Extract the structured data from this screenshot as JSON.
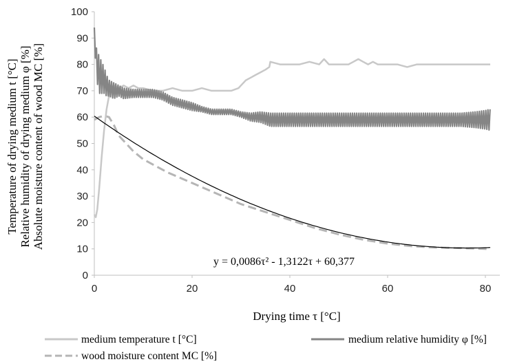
{
  "chart_data": {
    "type": "line",
    "xlabel": "Drying time τ [°C]",
    "ylabel_lines": [
      "Temperature of drying medium t [°C]",
      "Relative humidity of drying medium φ [%]",
      "Absolute moisture content of wood MC [%]"
    ],
    "xlim": [
      0,
      83
    ],
    "ylim": [
      0,
      100
    ],
    "xticks": [
      0,
      20,
      40,
      60,
      80
    ],
    "yticks": [
      0,
      10,
      20,
      30,
      40,
      50,
      60,
      70,
      80,
      90,
      100
    ],
    "grid": false,
    "legend_position": "bottom",
    "series": [
      {
        "name": "medium temperature t [°C]",
        "color": "#c8c8c8",
        "style": "solid",
        "x": [
          0,
          0.3,
          0.6,
          1,
          1.5,
          2,
          2.5,
          3,
          3.5,
          4,
          5,
          6,
          7,
          8,
          9,
          10,
          12,
          14,
          16,
          18,
          20,
          22,
          24,
          26,
          28,
          29.5,
          30,
          31,
          32,
          33,
          34,
          35,
          35.8,
          36,
          38,
          40,
          42,
          44,
          46,
          47,
          48,
          50,
          52,
          53,
          54,
          55,
          56,
          57,
          58,
          60,
          62,
          64,
          66,
          68,
          70,
          72,
          74,
          76,
          78,
          80,
          81
        ],
        "y": [
          23,
          22,
          25,
          33,
          45,
          55,
          63,
          68,
          71,
          72,
          71,
          72,
          71,
          72,
          71,
          71,
          70,
          70,
          71,
          70,
          70,
          71,
          70,
          70,
          70,
          71,
          72,
          74,
          75,
          76,
          77,
          78,
          79,
          81,
          80,
          80,
          80,
          81,
          80,
          82,
          80,
          80,
          80,
          81,
          82,
          81,
          80,
          81,
          80,
          80,
          80,
          79,
          80,
          80,
          80,
          80,
          80,
          80,
          80,
          80,
          80
        ]
      },
      {
        "name": "medium relative humidity φ [%]",
        "color": "#858585",
        "style": "solid",
        "x": [
          0,
          0.2,
          0.5,
          1,
          1.5,
          2,
          2.5,
          3,
          4,
          5,
          6,
          8,
          10,
          12,
          14,
          16,
          18,
          20,
          22,
          24,
          26,
          28,
          30,
          32,
          34,
          36,
          40,
          45,
          50,
          55,
          60,
          65,
          70,
          75,
          78,
          80,
          81
        ],
        "y": [
          94,
          85,
          80,
          76,
          75,
          74,
          72,
          71,
          70,
          70,
          69,
          69,
          69,
          69,
          68,
          66,
          65,
          64,
          63,
          62,
          62,
          62,
          61,
          60,
          60,
          59,
          59,
          59,
          59,
          59,
          59,
          59,
          59,
          59,
          59,
          59,
          59
        ],
        "oscillation": [
          0,
          2,
          6,
          7,
          6,
          5,
          4,
          3,
          3,
          2,
          2,
          1.5,
          1.5,
          1.5,
          1.5,
          1.5,
          1.5,
          1.5,
          1,
          1,
          1,
          1,
          1,
          1.5,
          2,
          2.5,
          2.5,
          2.5,
          2.5,
          2.5,
          2.5,
          2.5,
          2.5,
          2.5,
          3,
          3.5,
          4
        ]
      },
      {
        "name": "wood moisture content MC [%]",
        "color": "#b5b5b5",
        "style": "dashed",
        "x": [
          0,
          1,
          2,
          3,
          4,
          5,
          6,
          8,
          10,
          15,
          20,
          25,
          30,
          35,
          40,
          45,
          50,
          55,
          60,
          65,
          70,
          75,
          80,
          81
        ],
        "y": [
          59,
          60,
          60.5,
          60,
          57,
          53,
          51,
          47,
          44,
          39,
          35,
          31,
          27,
          24,
          21,
          18,
          15.5,
          13.5,
          12,
          11,
          10.5,
          10.3,
          10,
          9.8
        ]
      }
    ],
    "trendline": {
      "type": "polynomial",
      "coefficients": [
        0.0086,
        -1.3122,
        60.377
      ],
      "x_range": [
        0,
        81
      ],
      "color": "#000000",
      "label": "y = 0,0086τ² - 1,3122τ + 60,377"
    }
  }
}
